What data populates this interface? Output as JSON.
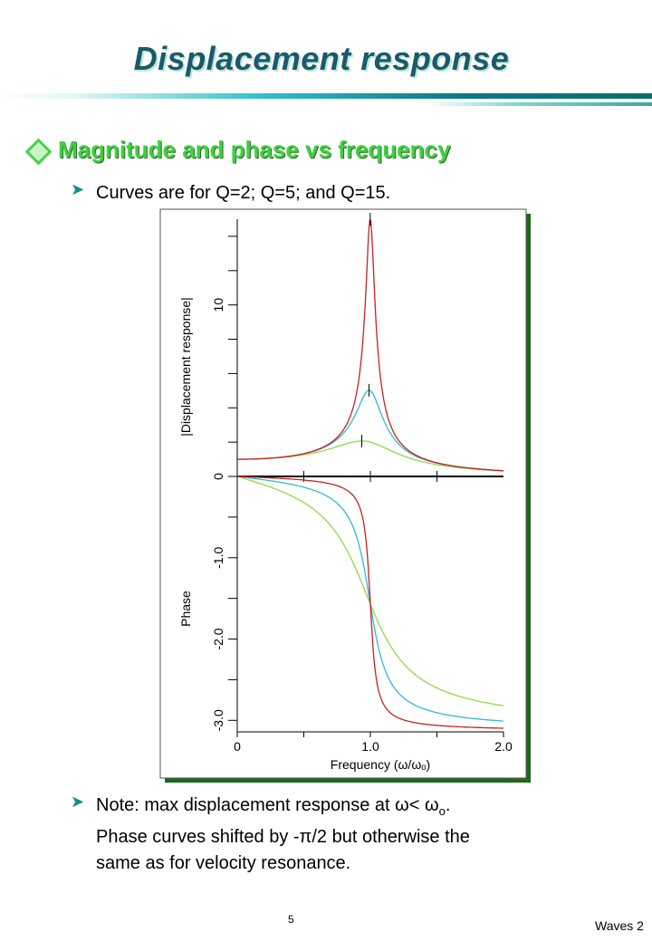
{
  "slide": {
    "title": "Displacement response",
    "bullet": "Magnitude and phase vs frequency",
    "sub_bullet": "Curves are for Q=2; Q=5; and Q=15.",
    "note_line1_prefix": "Note: max displacement response at ",
    "note_line1_math": "ω< ω",
    "note_line1_sub": "o",
    "note_line1_end": ".",
    "note_line2": "Phase curves shifted by -π/2 but otherwise the",
    "note_line3": "same as for velocity resonance.",
    "page_number": "5",
    "footer": "Waves 2"
  },
  "chart_data": [
    {
      "type": "line",
      "title": "",
      "ylabel": "|Displacement response|",
      "xlabel": "",
      "xlim": [
        0,
        2.0
      ],
      "ylim": [
        0,
        15
      ],
      "yticks": [
        "0",
        "10"
      ],
      "series": [
        {
          "Q": 2,
          "color": "#8fd94a",
          "x": [
            0,
            0.5,
            0.8,
            0.94,
            1.0,
            1.2,
            1.5,
            2.0
          ],
          "y": [
            1.0,
            1.3,
            1.9,
            2.07,
            2.0,
            1.5,
            0.8,
            0.33
          ]
        },
        {
          "Q": 5,
          "color": "#30b8d8",
          "x": [
            0,
            0.5,
            0.8,
            0.99,
            1.0,
            1.2,
            1.5,
            2.0
          ],
          "y": [
            1.0,
            1.33,
            2.63,
            5.03,
            5.0,
            1.76,
            0.78,
            0.33
          ]
        },
        {
          "Q": 15,
          "color": "#cc2020",
          "x": [
            0,
            0.5,
            0.8,
            0.95,
            1.0,
            1.05,
            1.2,
            1.5,
            2.0
          ],
          "y": [
            1.0,
            1.33,
            2.74,
            8.0,
            15.0,
            7.5,
            2.1,
            0.8,
            0.33
          ]
        }
      ]
    },
    {
      "type": "line",
      "title": "",
      "ylabel": "Phase",
      "xlabel": "Frequency (ω/ωₒ)",
      "xticks": [
        "0",
        "1.0",
        "2.0"
      ],
      "yticks": [
        "-1.0",
        "-2.0",
        "-3.0"
      ],
      "xlim": [
        0,
        2.0
      ],
      "ylim": [
        -3.14159,
        0
      ],
      "series": [
        {
          "Q": 2,
          "color": "#8fd94a",
          "x": [
            0,
            0.5,
            1.0,
            1.5,
            2.0
          ],
          "y": [
            0,
            -0.32,
            -1.571,
            -2.73,
            -2.97
          ]
        },
        {
          "Q": 5,
          "color": "#30b8d8",
          "x": [
            0,
            0.5,
            1.0,
            1.5,
            2.0
          ],
          "y": [
            0,
            -0.13,
            -1.571,
            -2.9,
            -3.07
          ]
        },
        {
          "Q": 15,
          "color": "#cc2020",
          "x": [
            0,
            0.5,
            1.0,
            1.5,
            2.0
          ],
          "y": [
            0,
            -0.04,
            -1.571,
            -3.06,
            -3.12
          ]
        }
      ]
    }
  ]
}
